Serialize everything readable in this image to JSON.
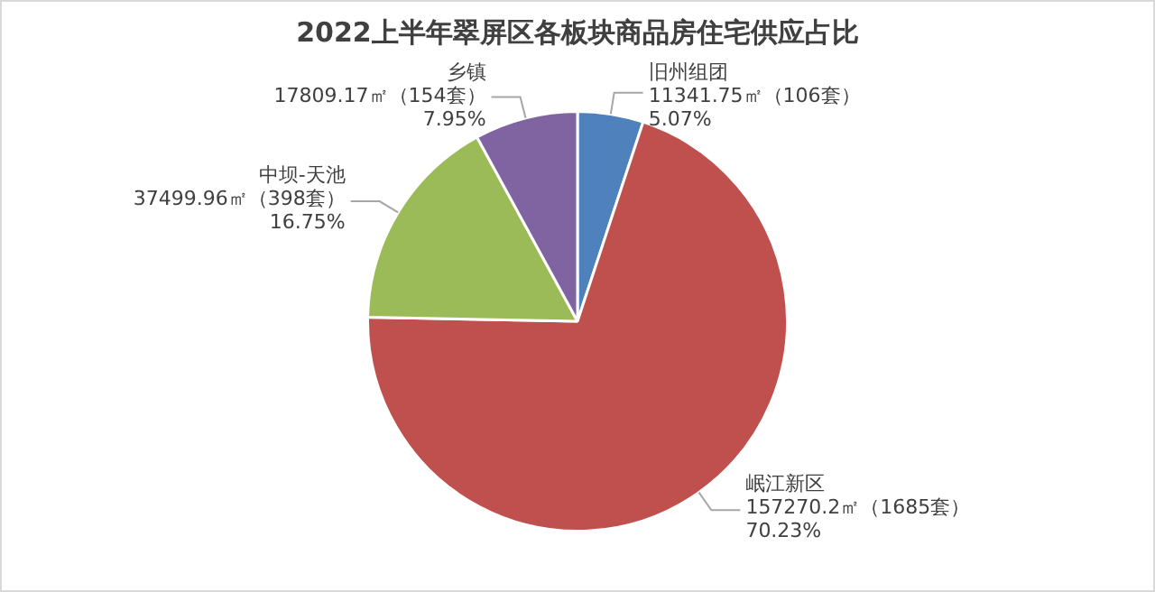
{
  "chart_data": {
    "type": "pie",
    "title": "2022上半年翠屏区各板块商品房住宅供应占比",
    "categories": [
      "旧州组团",
      "岷江新区",
      "中坝-天池",
      "乡镇"
    ],
    "values": [
      11341.75,
      157270.2,
      37499.96,
      17809.17
    ],
    "value_labels": [
      "11341.75㎡（106套）\n5.07%",
      "157270.2㎡（1685套）\n70.23%",
      "37499.96㎡（398套）\n16.75%",
      "17809.17㎡（154套）\n7.95%"
    ],
    "colors": [
      "#4f81bd",
      "#c0504d",
      "#9bbb59",
      "#8064a2"
    ],
    "legend": false
  }
}
